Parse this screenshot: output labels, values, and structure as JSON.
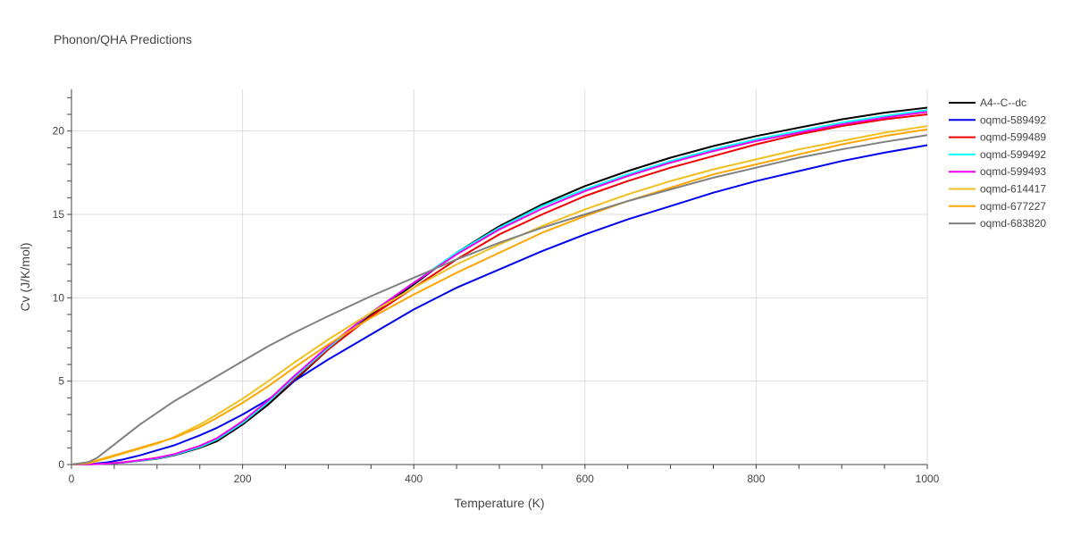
{
  "chart_data": {
    "type": "line",
    "title": "Phonon/QHA Predictions",
    "xlabel": "Temperature (K)",
    "ylabel": "Cv (J/K/mol)",
    "xlim": [
      0,
      1000
    ],
    "ylim": [
      0,
      22.5
    ],
    "xticks": [
      0,
      200,
      400,
      600,
      800,
      1000
    ],
    "yticks": [
      0,
      5,
      10,
      15,
      20
    ],
    "grid": true,
    "legend_position": "top-right",
    "series": [
      {
        "name": "A4--C--dc",
        "color": "#000000",
        "x": [
          0,
          20,
          40,
          60,
          80,
          100,
          120,
          150,
          170,
          200,
          230,
          260,
          300,
          350,
          400,
          450,
          500,
          550,
          600,
          650,
          700,
          750,
          800,
          850,
          900,
          950,
          1000
        ],
        "y": [
          0,
          0.01,
          0.05,
          0.12,
          0.22,
          0.35,
          0.55,
          1.0,
          1.4,
          2.4,
          3.6,
          5.0,
          6.9,
          9.0,
          10.8,
          12.7,
          14.3,
          15.6,
          16.7,
          17.6,
          18.4,
          19.1,
          19.7,
          20.2,
          20.7,
          21.1,
          21.4
        ]
      },
      {
        "name": "oqmd-589492",
        "color": "#0000ee",
        "x": [
          0,
          20,
          40,
          60,
          80,
          100,
          120,
          150,
          170,
          200,
          230,
          260,
          300,
          350,
          400,
          450,
          500,
          550,
          600,
          650,
          700,
          750,
          800,
          850,
          900,
          950,
          1000
        ],
        "y": [
          0,
          0.02,
          0.12,
          0.3,
          0.55,
          0.85,
          1.15,
          1.75,
          2.2,
          3.0,
          3.9,
          5.0,
          6.3,
          7.8,
          9.3,
          10.6,
          11.7,
          12.8,
          13.8,
          14.7,
          15.5,
          16.3,
          17.0,
          17.6,
          18.2,
          18.7,
          19.15
        ]
      },
      {
        "name": "oqmd-599489",
        "color": "#ee0000",
        "x": [
          0,
          20,
          40,
          60,
          80,
          100,
          120,
          150,
          170,
          200,
          230,
          260,
          300,
          350,
          400,
          450,
          500,
          550,
          600,
          650,
          700,
          750,
          800,
          850,
          900,
          950,
          1000
        ],
        "y": [
          0,
          0.01,
          0.05,
          0.13,
          0.25,
          0.4,
          0.6,
          1.1,
          1.55,
          2.55,
          3.75,
          5.1,
          6.9,
          8.9,
          10.6,
          12.3,
          13.8,
          15.0,
          16.1,
          17.0,
          17.8,
          18.5,
          19.2,
          19.8,
          20.3,
          20.7,
          21.0
        ]
      },
      {
        "name": "oqmd-599492",
        "color": "#00ffff",
        "x": [
          0,
          20,
          40,
          60,
          80,
          100,
          120,
          150,
          170,
          200,
          230,
          260,
          300,
          350,
          400,
          450,
          500,
          550,
          600,
          650,
          700,
          750,
          800,
          850,
          900,
          950,
          1000
        ],
        "y": [
          0,
          0.01,
          0.05,
          0.12,
          0.23,
          0.37,
          0.58,
          1.05,
          1.5,
          2.5,
          3.75,
          5.2,
          7.0,
          9.1,
          10.9,
          12.7,
          14.2,
          15.5,
          16.5,
          17.4,
          18.2,
          18.9,
          19.5,
          20.0,
          20.5,
          20.9,
          21.25
        ]
      },
      {
        "name": "oqmd-599493",
        "color": "#ee00ee",
        "x": [
          0,
          20,
          40,
          60,
          80,
          100,
          120,
          150,
          170,
          200,
          230,
          260,
          300,
          350,
          400,
          450,
          500,
          550,
          600,
          650,
          700,
          750,
          800,
          850,
          900,
          950,
          1000
        ],
        "y": [
          0,
          0.01,
          0.05,
          0.13,
          0.25,
          0.4,
          0.62,
          1.12,
          1.58,
          2.6,
          3.85,
          5.3,
          7.1,
          9.1,
          10.9,
          12.6,
          14.1,
          15.35,
          16.4,
          17.3,
          18.1,
          18.8,
          19.4,
          19.9,
          20.4,
          20.8,
          21.15
        ]
      },
      {
        "name": "oqmd-614417",
        "color": "#f0c020",
        "x": [
          0,
          20,
          40,
          60,
          80,
          100,
          120,
          150,
          170,
          200,
          230,
          260,
          300,
          350,
          400,
          450,
          500,
          550,
          600,
          650,
          700,
          750,
          800,
          850,
          900,
          950,
          1000
        ],
        "y": [
          0,
          0.08,
          0.35,
          0.65,
          0.95,
          1.25,
          1.65,
          2.4,
          3.0,
          3.95,
          5.0,
          6.1,
          7.5,
          9.1,
          10.6,
          12.0,
          13.2,
          14.3,
          15.3,
          16.2,
          17.0,
          17.7,
          18.3,
          18.9,
          19.4,
          19.9,
          20.3
        ]
      },
      {
        "name": "oqmd-677227",
        "color": "#ffa500",
        "x": [
          0,
          20,
          40,
          60,
          80,
          100,
          120,
          150,
          170,
          200,
          230,
          260,
          300,
          350,
          400,
          450,
          500,
          550,
          600,
          650,
          700,
          750,
          800,
          850,
          900,
          950,
          1000
        ],
        "y": [
          0,
          0.1,
          0.4,
          0.7,
          1.0,
          1.3,
          1.6,
          2.25,
          2.8,
          3.7,
          4.7,
          5.8,
          7.2,
          8.8,
          10.2,
          11.5,
          12.7,
          13.9,
          14.9,
          15.8,
          16.6,
          17.4,
          18.0,
          18.6,
          19.2,
          19.7,
          20.1
        ]
      },
      {
        "name": "oqmd-683820",
        "color": "#808080",
        "x": [
          0,
          20,
          30,
          40,
          60,
          80,
          100,
          120,
          150,
          170,
          200,
          230,
          260,
          300,
          350,
          400,
          450,
          500,
          550,
          600,
          650,
          700,
          750,
          800,
          850,
          900,
          950,
          1000
        ],
        "y": [
          0,
          0.15,
          0.4,
          0.8,
          1.6,
          2.4,
          3.1,
          3.8,
          4.7,
          5.3,
          6.2,
          7.1,
          7.9,
          8.9,
          10.1,
          11.2,
          12.3,
          13.3,
          14.2,
          15.0,
          15.8,
          16.5,
          17.2,
          17.8,
          18.4,
          18.9,
          19.35,
          19.75
        ]
      }
    ]
  }
}
